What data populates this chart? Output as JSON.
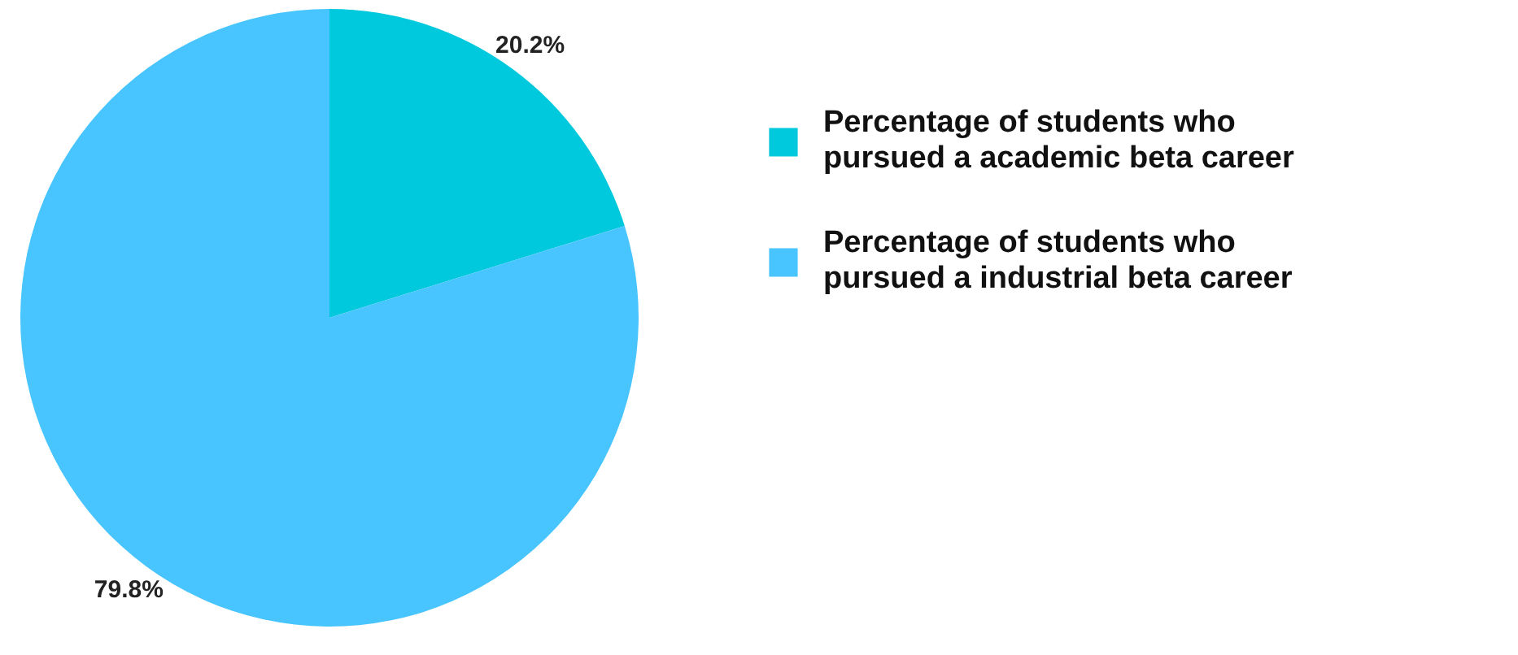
{
  "chart_data": {
    "type": "pie",
    "categories": [
      "Percentage of students who pursued a academic beta career",
      "Percentage of students who pursued a industrial beta career"
    ],
    "values": [
      20.2,
      79.8
    ],
    "colors": [
      "#00c9dd",
      "#48c5fe"
    ],
    "value_labels": [
      "20.2%",
      "79.8%"
    ],
    "legend": "right"
  }
}
